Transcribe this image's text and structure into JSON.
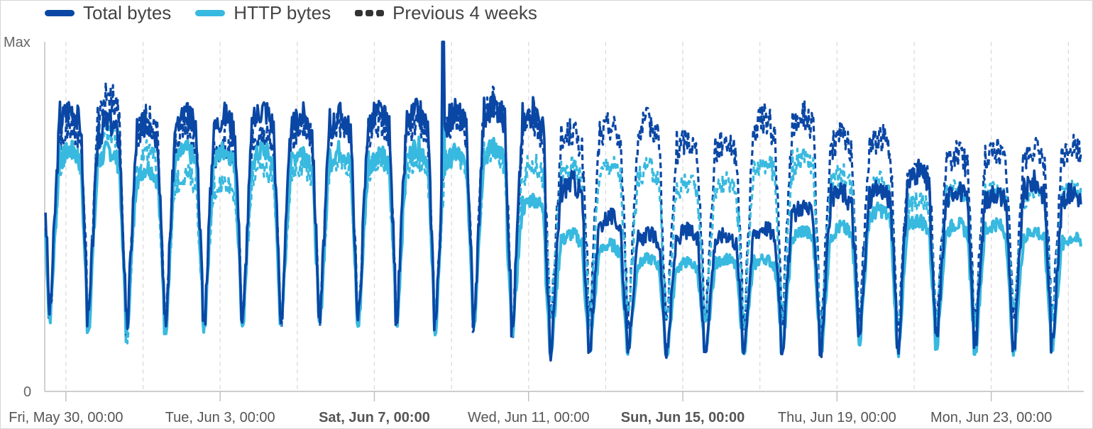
{
  "chart_data": {
    "type": "line",
    "title": "",
    "xlabel": "",
    "ylabel": "",
    "ylim": [
      0,
      1
    ],
    "y_tick_labels": [
      "0",
      "Max"
    ],
    "x_axis_unit": "days since Fri, May 30, 00:00",
    "x_range": [
      -0.55,
      26.4
    ],
    "x_ticks": [
      {
        "day": 0,
        "label": "Fri, May 30, 00:00",
        "bold": false
      },
      {
        "day": 4,
        "label": "Tue, Jun 3, 00:00",
        "bold": false
      },
      {
        "day": 8,
        "label": "Sat, Jun 7, 00:00",
        "bold": true
      },
      {
        "day": 12,
        "label": "Wed, Jun 11, 00:00",
        "bold": false
      },
      {
        "day": 16,
        "label": "Sun, Jun 15, 00:00",
        "bold": true
      },
      {
        "day": 20,
        "label": "Thu, Jun 19, 00:00",
        "bold": false
      },
      {
        "day": 24,
        "label": "Mon, Jun 23, 00:00",
        "bold": false
      }
    ],
    "grid_days": [
      0,
      2,
      4,
      6,
      8,
      10,
      12,
      14,
      16,
      18,
      20,
      22,
      24,
      26
    ],
    "legend_position": "top-left",
    "series": [
      {
        "name": "Total bytes",
        "color": "#0a47a5",
        "style": "solid",
        "daily_trough": [
          0.24,
          0.22,
          0.2,
          0.2,
          0.21,
          0.21,
          0.22,
          0.22,
          0.21,
          0.23,
          0.21,
          0.21,
          0.19,
          0.12,
          0.13,
          0.13,
          0.11,
          0.12,
          0.13,
          0.13,
          0.12,
          0.16,
          0.13,
          0.15,
          0.14,
          0.12,
          0.14,
          0.18
        ],
        "daily_peak": [
          0.81,
          0.77,
          0.77,
          0.79,
          0.79,
          0.81,
          0.79,
          0.79,
          0.8,
          0.8,
          0.8,
          0.82,
          0.8,
          0.6,
          0.5,
          0.45,
          0.46,
          0.45,
          0.47,
          0.53,
          0.57,
          0.58,
          0.63,
          0.58,
          0.57,
          0.6,
          0.57,
          0.53
        ],
        "notable_spike": {
          "day": 9.78,
          "value": 1.0
        }
      },
      {
        "name": "HTTP bytes",
        "color": "#38b9df",
        "style": "solid",
        "daily_trough": [
          0.22,
          0.19,
          0.19,
          0.19,
          0.19,
          0.2,
          0.2,
          0.2,
          0.19,
          0.21,
          0.19,
          0.21,
          0.18,
          0.12,
          0.12,
          0.12,
          0.11,
          0.11,
          0.12,
          0.12,
          0.12,
          0.15,
          0.12,
          0.14,
          0.12,
          0.11,
          0.13,
          0.16
        ],
        "daily_peak": [
          0.69,
          0.69,
          0.64,
          0.69,
          0.69,
          0.69,
          0.69,
          0.69,
          0.68,
          0.7,
          0.68,
          0.7,
          0.55,
          0.45,
          0.42,
          0.38,
          0.37,
          0.38,
          0.38,
          0.46,
          0.47,
          0.52,
          0.49,
          0.48,
          0.48,
          0.46,
          0.44,
          0.46
        ],
        "notable_spike": {
          "day": 9.78,
          "value": 0.89
        }
      },
      {
        "name": "Previous 4 weeks",
        "color": "#333333",
        "style": "dashed",
        "daily_trough": [
          0.22,
          0.22,
          0.17,
          0.2,
          0.21,
          0.22,
          0.22,
          0.22,
          0.22,
          0.23,
          0.22,
          0.21,
          0.2,
          0.22,
          0.22,
          0.22,
          0.21,
          0.22,
          0.21,
          0.22,
          0.2,
          0.2,
          0.19,
          0.21,
          0.2,
          0.23,
          0.22,
          0.22
        ],
        "daily_peak": [
          0.76,
          0.84,
          0.78,
          0.75,
          0.71,
          0.73,
          0.76,
          0.77,
          0.77,
          0.77,
          0.78,
          0.83,
          0.77,
          0.74,
          0.76,
          0.77,
          0.72,
          0.72,
          0.78,
          0.79,
          0.73,
          0.73,
          0.65,
          0.68,
          0.69,
          0.69,
          0.7,
          0.69
        ],
        "companion_dashed": [
          {
            "of": "Total bytes",
            "color": "#0a47a5",
            "daily_peak": [
              0.76,
              0.84,
              0.78,
              0.75,
              0.71,
              0.73,
              0.76,
              0.77,
              0.77,
              0.77,
              0.78,
              0.83,
              0.77,
              0.74,
              0.76,
              0.77,
              0.72,
              0.72,
              0.78,
              0.79,
              0.73,
              0.73,
              0.65,
              0.68,
              0.69,
              0.69,
              0.7,
              0.69
            ]
          },
          {
            "of": "HTTP bytes",
            "color": "#38b9df",
            "daily_peak": [
              0.69,
              0.75,
              0.68,
              0.62,
              0.6,
              0.64,
              0.65,
              0.66,
              0.66,
              0.66,
              0.67,
              0.69,
              0.65,
              0.64,
              0.65,
              0.64,
              0.6,
              0.6,
              0.66,
              0.67,
              0.62,
              0.6,
              0.55,
              0.58,
              0.58,
              0.57,
              0.58,
              0.57
            ]
          }
        ]
      }
    ]
  },
  "legend": {
    "total_label": "Total bytes",
    "http_label": "HTTP bytes",
    "prev_label": "Previous 4 weeks"
  },
  "colors": {
    "total": "#0a47a5",
    "http": "#38b9df",
    "prev_legend": "#333333",
    "grid": "#d9d9d9",
    "axis": "#bdbdbd"
  }
}
